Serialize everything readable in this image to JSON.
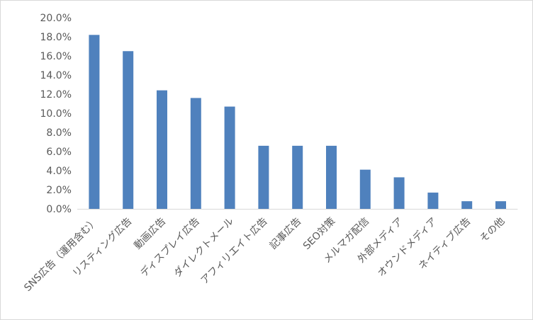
{
  "chart_data": {
    "type": "bar",
    "title": "",
    "xlabel": "",
    "ylabel": "",
    "categories": [
      "SNS広告（運用含む）",
      "リスティング広告",
      "動画広告",
      "ディスプレイ広告",
      "ダイレクトメール",
      "アフィリエイト広告",
      "記事広告",
      "SEO対策",
      "メルマガ配信",
      "外部メディア",
      "オウンドメディア",
      "ネイティブ広告",
      "その他"
    ],
    "values": [
      18.2,
      16.5,
      12.4,
      11.6,
      10.7,
      6.6,
      6.6,
      6.6,
      4.1,
      3.3,
      1.7,
      0.8,
      0.8
    ],
    "unit": "%",
    "ylim": [
      0,
      20
    ],
    "yticks": [
      "0.0%",
      "2.0%",
      "4.0%",
      "6.0%",
      "8.0%",
      "10.0%",
      "12.0%",
      "14.0%",
      "16.0%",
      "18.0%",
      "20.0%"
    ],
    "grid": false,
    "legend": "none",
    "bar_color": "#4f81bd"
  }
}
